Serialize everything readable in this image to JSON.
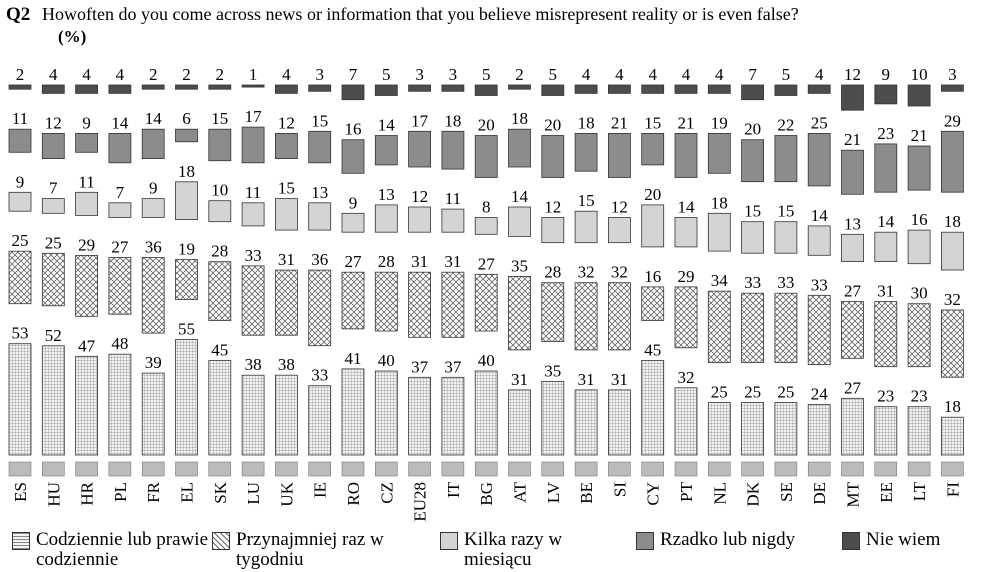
{
  "chart_data": {
    "type": "floating-stacked-bar",
    "question": "Q2",
    "title": "Howoften do you come across news or information that you believe misrepresent reality or is even false?",
    "subtitle": "(%)",
    "categories": [
      "ES",
      "HU",
      "HR",
      "PL",
      "FR",
      "EL",
      "SK",
      "LU",
      "UK",
      "IE",
      "RO",
      "CZ",
      "EU28",
      "IT",
      "BG",
      "AT",
      "LV",
      "BE",
      "SI",
      "CY",
      "PT",
      "NL",
      "DK",
      "SE",
      "DE",
      "MT",
      "EE",
      "LT",
      "FI"
    ],
    "ylim": [
      0,
      100
    ],
    "series": [
      {
        "name": "Codziennie lub prawie codziennie",
        "color": "#e4e4e4",
        "pattern": "grid",
        "values": [
          53,
          52,
          47,
          48,
          39,
          55,
          45,
          38,
          38,
          33,
          41,
          40,
          37,
          37,
          40,
          31,
          35,
          31,
          31,
          45,
          32,
          25,
          25,
          25,
          24,
          27,
          23,
          23,
          18
        ]
      },
      {
        "name": "Przynajmniej raz w tygodniu",
        "color": "#ffffff",
        "pattern": "crosshatch",
        "values": [
          25,
          25,
          29,
          27,
          36,
          19,
          28,
          33,
          31,
          36,
          27,
          28,
          31,
          31,
          27,
          35,
          28,
          32,
          32,
          16,
          29,
          34,
          33,
          33,
          33,
          27,
          31,
          30,
          32
        ]
      },
      {
        "name": "Kilka razy w miesiącu",
        "color": "#d4d4d4",
        "values": [
          9,
          7,
          11,
          7,
          9,
          18,
          10,
          11,
          15,
          13,
          9,
          13,
          12,
          11,
          8,
          14,
          12,
          15,
          12,
          20,
          14,
          18,
          15,
          15,
          14,
          13,
          14,
          16,
          18
        ]
      },
      {
        "name": "Rzadko lub nigdy",
        "color": "#8c8c8c",
        "values": [
          11,
          12,
          9,
          14,
          14,
          6,
          15,
          17,
          12,
          15,
          16,
          14,
          17,
          18,
          20,
          18,
          20,
          18,
          21,
          15,
          21,
          19,
          20,
          22,
          25,
          21,
          23,
          21,
          29
        ]
      },
      {
        "name": "Nie wiem",
        "color": "#4d4d4d",
        "values": [
          2,
          4,
          4,
          4,
          2,
          2,
          2,
          1,
          4,
          3,
          7,
          5,
          3,
          3,
          5,
          2,
          5,
          4,
          4,
          4,
          4,
          4,
          7,
          5,
          4,
          12,
          9,
          10,
          3
        ]
      }
    ]
  }
}
